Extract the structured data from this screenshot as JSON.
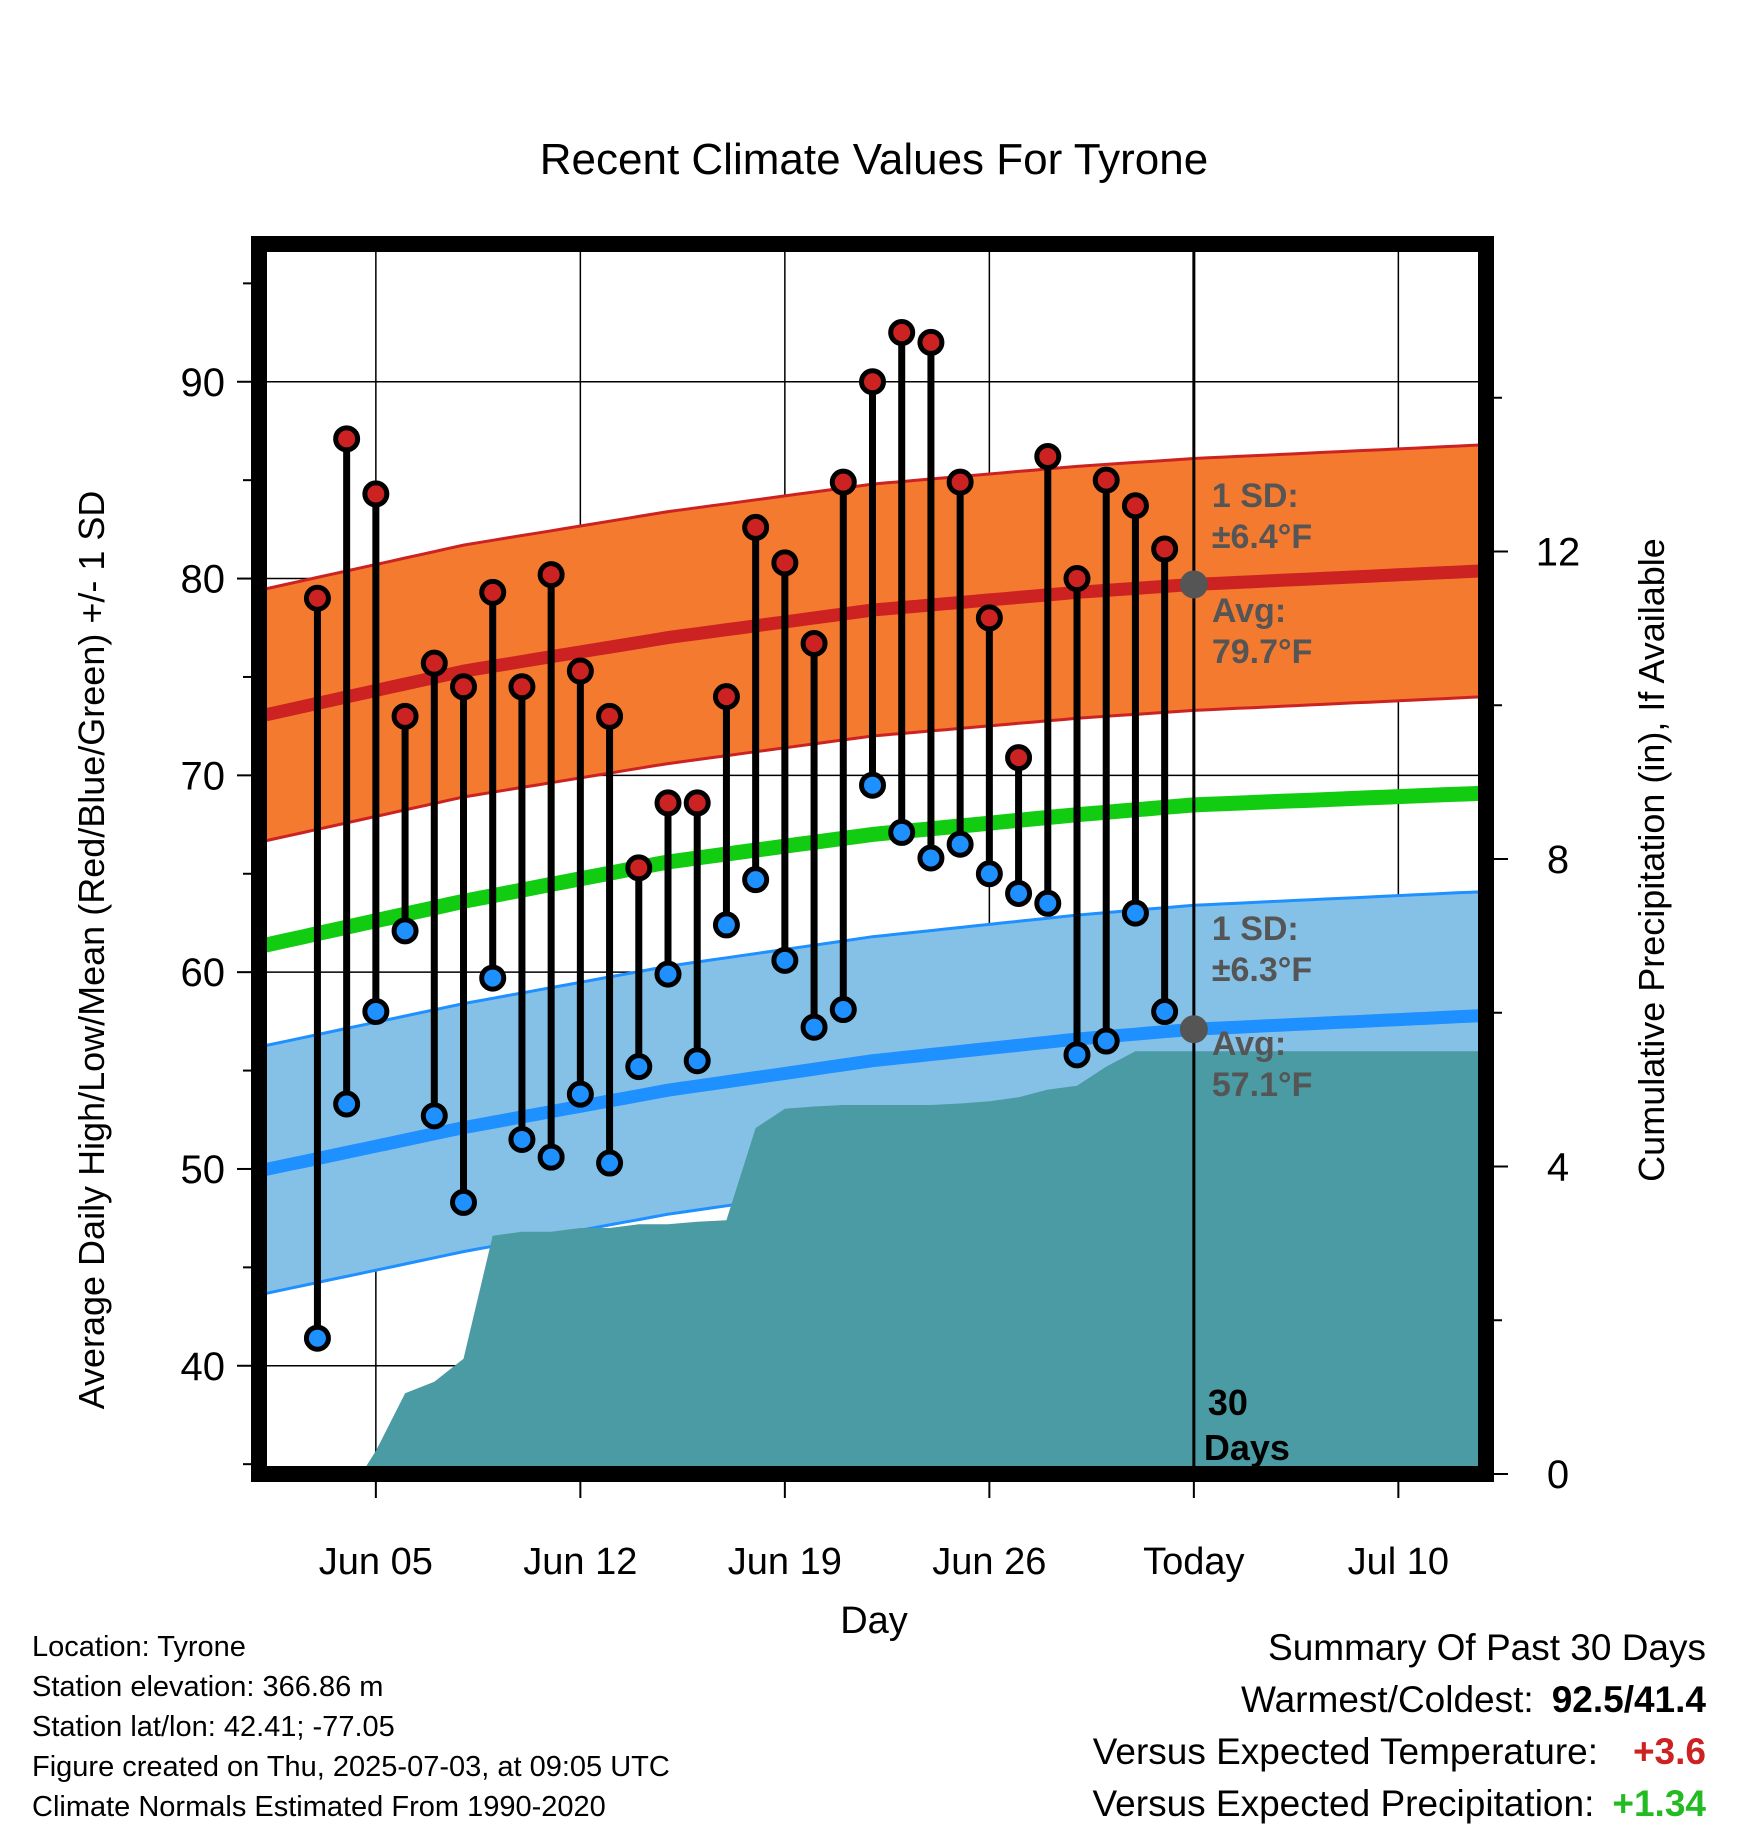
{
  "colors": {
    "high_band": "#f47a30",
    "high_line": "#cc2222",
    "low_band": "#85c1e6",
    "low_line": "#1e90ff",
    "mean_line": "#11cc11",
    "precip": "#4a9ba4",
    "high_marker": "#cc2222",
    "low_marker": "#1e90ff",
    "today_marker": "#555555",
    "warm_anomaly": "#cc2222",
    "precip_anomaly": "#22bb22"
  },
  "chart_data": {
    "type": "line",
    "title": "Recent Climate Values For Tyrone",
    "xlabel": "Day",
    "ylabel": "Average Daily High/Low/Mean (Red/Blue/Green) +/- 1 SD",
    "y2label": "Cumulative Precipitation (in), If Available",
    "ylim": [
      34.5,
      97
    ],
    "y2lim": [
      0,
      16
    ],
    "yticks": [
      40,
      50,
      60,
      70,
      80,
      90
    ],
    "y2ticks": [
      0,
      4,
      8,
      12
    ],
    "xlim": [
      "2025-06-01",
      "2025-07-13"
    ],
    "xticks": [
      {
        "date": "2025-06-05",
        "label": "Jun 05"
      },
      {
        "date": "2025-06-12",
        "label": "Jun 12"
      },
      {
        "date": "2025-06-19",
        "label": "Jun 19"
      },
      {
        "date": "2025-06-26",
        "label": "Jun 26"
      },
      {
        "date": "2025-07-03",
        "label": "Today"
      },
      {
        "date": "2025-07-10",
        "label": "Jul 10"
      }
    ],
    "today": "2025-07-03",
    "today_label": "30",
    "today_label2": "Days",
    "grid": true,
    "normals": {
      "dates": [
        "2025-06-01",
        "2025-06-08",
        "2025-06-15",
        "2025-06-22",
        "2025-06-29",
        "2025-07-03",
        "2025-07-13"
      ],
      "high_mean": [
        73.0,
        75.3,
        77.0,
        78.4,
        79.3,
        79.7,
        80.4
      ],
      "low_mean": [
        49.9,
        52.1,
        54.0,
        55.5,
        56.6,
        57.1,
        57.8
      ],
      "mean": [
        61.3,
        63.6,
        65.6,
        67.0,
        68.0,
        68.5,
        69.1
      ],
      "high_sd": 6.4,
      "low_sd": 6.3
    },
    "observed": {
      "dates": [
        "2025-06-03",
        "2025-06-04",
        "2025-06-05",
        "2025-06-06",
        "2025-06-07",
        "2025-06-08",
        "2025-06-09",
        "2025-06-10",
        "2025-06-11",
        "2025-06-12",
        "2025-06-13",
        "2025-06-14",
        "2025-06-15",
        "2025-06-16",
        "2025-06-17",
        "2025-06-18",
        "2025-06-19",
        "2025-06-20",
        "2025-06-21",
        "2025-06-22",
        "2025-06-23",
        "2025-06-24",
        "2025-06-25",
        "2025-06-26",
        "2025-06-27",
        "2025-06-28",
        "2025-06-29",
        "2025-06-30",
        "2025-07-01",
        "2025-07-02"
      ],
      "highs": [
        79.0,
        87.1,
        84.3,
        73.0,
        75.7,
        74.5,
        79.3,
        74.5,
        80.2,
        75.3,
        73.0,
        65.3,
        68.6,
        68.6,
        74.0,
        82.6,
        80.8,
        76.7,
        84.9,
        90.0,
        92.5,
        92.0,
        84.9,
        78.0,
        70.9,
        86.2,
        80.0,
        85.0,
        83.7,
        81.5
      ],
      "lows": [
        41.4,
        53.3,
        58.0,
        62.1,
        52.7,
        48.3,
        59.7,
        51.5,
        50.6,
        53.8,
        50.3,
        55.2,
        59.9,
        55.5,
        62.4,
        64.7,
        60.6,
        57.2,
        58.1,
        69.5,
        67.1,
        65.8,
        66.5,
        65.0,
        64.0,
        63.5,
        55.8,
        56.5,
        63.0,
        58.0
      ]
    },
    "precip": {
      "dates": [
        "2025-06-03",
        "2025-06-04.5",
        "2025-06-05",
        "2025-06-06",
        "2025-06-07",
        "2025-06-08",
        "2025-06-09",
        "2025-06-10",
        "2025-06-11",
        "2025-06-12",
        "2025-06-13",
        "2025-06-14",
        "2025-06-15",
        "2025-06-16",
        "2025-06-17",
        "2025-06-18",
        "2025-06-19",
        "2025-06-20",
        "2025-06-21",
        "2025-06-22",
        "2025-06-23",
        "2025-06-24",
        "2025-06-25",
        "2025-06-26",
        "2025-06-27",
        "2025-06-28",
        "2025-06-29",
        "2025-06-30",
        "2025-07-01",
        "2025-07-02",
        "2025-07-03",
        "2025-07-13"
      ],
      "values": [
        0,
        0,
        0.3,
        1.05,
        1.2,
        1.5,
        3.1,
        3.15,
        3.15,
        3.2,
        3.2,
        3.25,
        3.25,
        3.28,
        3.3,
        4.5,
        4.75,
        4.78,
        4.8,
        4.8,
        4.8,
        4.8,
        4.82,
        4.85,
        4.9,
        5.0,
        5.05,
        5.3,
        5.5,
        5.5,
        5.5,
        5.5
      ]
    },
    "annotations": {
      "high_sd_label": "1 SD:",
      "high_sd_value": "±6.4°F",
      "high_avg_label": "Avg:",
      "high_avg_value": "79.7°F",
      "low_sd_label": "1 SD:",
      "low_sd_value": "±6.3°F",
      "low_avg_label": "Avg:",
      "low_avg_value": "57.1°F"
    }
  },
  "footer": {
    "location": "Location: Tyrone",
    "elevation": "Station elevation: 366.86 m",
    "latlon": "Station lat/lon: 42.41; -77.05",
    "created": "Figure created on Thu, 2025-07-03, at 09:05 UTC",
    "normals": "Climate Normals Estimated From 1990-2020"
  },
  "summary": {
    "heading": "Summary Of Past 30 Days",
    "warmest_label": "Warmest/Coldest:",
    "warmest_value": "92.5/41.4",
    "temp_label": "Versus Expected Temperature:",
    "temp_value": "+3.6",
    "precip_label": "Versus Expected Precipitation:",
    "precip_value": "+1.34"
  }
}
